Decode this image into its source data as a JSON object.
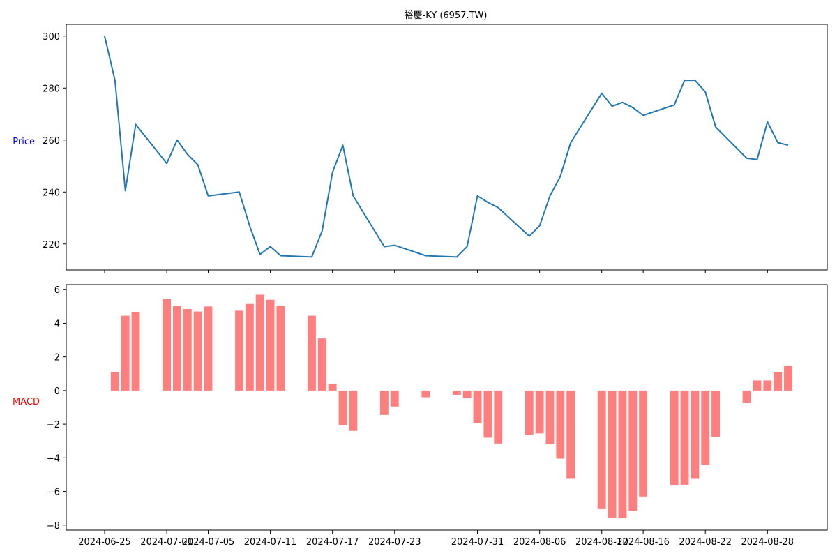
{
  "chart_data": [
    {
      "type": "line",
      "title": "裕慶-KY (6957.TW)",
      "ylabel": "Price",
      "ylabel_color": "#0000ff",
      "line_color": "#1f77b4",
      "ylim": [
        210,
        304.5
      ],
      "yticks": [
        220,
        240,
        260,
        280,
        300
      ],
      "grid": false,
      "x": [
        "2024-06-25",
        "2024-06-26",
        "2024-06-27",
        "2024-06-28",
        "2024-07-01",
        "2024-07-02",
        "2024-07-03",
        "2024-07-04",
        "2024-07-05",
        "2024-07-08",
        "2024-07-09",
        "2024-07-10",
        "2024-07-11",
        "2024-07-12",
        "2024-07-15",
        "2024-07-16",
        "2024-07-17",
        "2024-07-18",
        "2024-07-19",
        "2024-07-22",
        "2024-07-23",
        "2024-07-26",
        "2024-07-29",
        "2024-07-30",
        "2024-07-31",
        "2024-08-01",
        "2024-08-02",
        "2024-08-05",
        "2024-08-06",
        "2024-08-07",
        "2024-08-08",
        "2024-08-09",
        "2024-08-12",
        "2024-08-13",
        "2024-08-14",
        "2024-08-15",
        "2024-08-16",
        "2024-08-19",
        "2024-08-20",
        "2024-08-21",
        "2024-08-22",
        "2024-08-23",
        "2024-08-26",
        "2024-08-27",
        "2024-08-28",
        "2024-08-29",
        "2024-08-30"
      ],
      "series": [
        {
          "values": [
            300,
            283,
            240.5,
            266,
            251,
            260,
            254.5,
            250.5,
            238.5,
            240,
            227,
            216,
            219,
            215.5,
            215,
            225,
            247.5,
            258,
            238.5,
            219,
            219.5,
            215.5,
            215,
            219,
            238.5,
            236,
            234,
            223,
            227,
            238.5,
            246,
            259,
            278,
            273,
            274.5,
            272.5,
            269.5,
            273.5,
            283,
            283,
            278.5,
            265,
            253,
            252.5,
            267,
            259,
            258
          ]
        }
      ]
    },
    {
      "type": "bar",
      "ylabel": "MACD",
      "ylabel_color": "#ff0000",
      "bar_color": "#ff7f7f",
      "ylim": [
        -8.3,
        6.3
      ],
      "yticks": [
        -8,
        -6,
        -4,
        -2,
        0,
        2,
        4,
        6
      ],
      "grid": false,
      "x": [
        "2024-06-26",
        "2024-06-27",
        "2024-06-28",
        "2024-07-01",
        "2024-07-02",
        "2024-07-03",
        "2024-07-04",
        "2024-07-05",
        "2024-07-08",
        "2024-07-09",
        "2024-07-10",
        "2024-07-11",
        "2024-07-12",
        "2024-07-15",
        "2024-07-16",
        "2024-07-17",
        "2024-07-18",
        "2024-07-19",
        "2024-07-22",
        "2024-07-23",
        "2024-07-26",
        "2024-07-29",
        "2024-07-30",
        "2024-07-31",
        "2024-08-01",
        "2024-08-02",
        "2024-08-05",
        "2024-08-06",
        "2024-08-07",
        "2024-08-08",
        "2024-08-09",
        "2024-08-12",
        "2024-08-13",
        "2024-08-14",
        "2024-08-15",
        "2024-08-16",
        "2024-08-19",
        "2024-08-20",
        "2024-08-21",
        "2024-08-22",
        "2024-08-23",
        "2024-08-26",
        "2024-08-27",
        "2024-08-28",
        "2024-08-29",
        "2024-08-30"
      ],
      "values": [
        1.1,
        4.45,
        4.65,
        5.45,
        5.05,
        4.85,
        4.7,
        5.0,
        4.75,
        5.15,
        5.7,
        5.4,
        5.05,
        4.45,
        3.1,
        0.4,
        -2.05,
        -2.4,
        -1.45,
        -0.95,
        -0.4,
        -0.25,
        -0.45,
        -1.95,
        -2.8,
        -3.15,
        -2.65,
        -2.55,
        -3.2,
        -4.05,
        -5.25,
        -7.05,
        -7.55,
        -7.6,
        -7.15,
        -6.3,
        -5.65,
        -5.6,
        -5.25,
        -4.4,
        -2.75,
        -0.75,
        0.6,
        0.6,
        1.1,
        1.45
      ]
    }
  ],
  "xticks": [
    "2024-06-25",
    "2024-07-01",
    "2024-07-05",
    "2024-07-11",
    "2024-07-17",
    "2024-07-23",
    "2024-07-31",
    "2024-08-06",
    "2024-08-12",
    "2024-08-16",
    "2024-08-22",
    "2024-08-28"
  ]
}
